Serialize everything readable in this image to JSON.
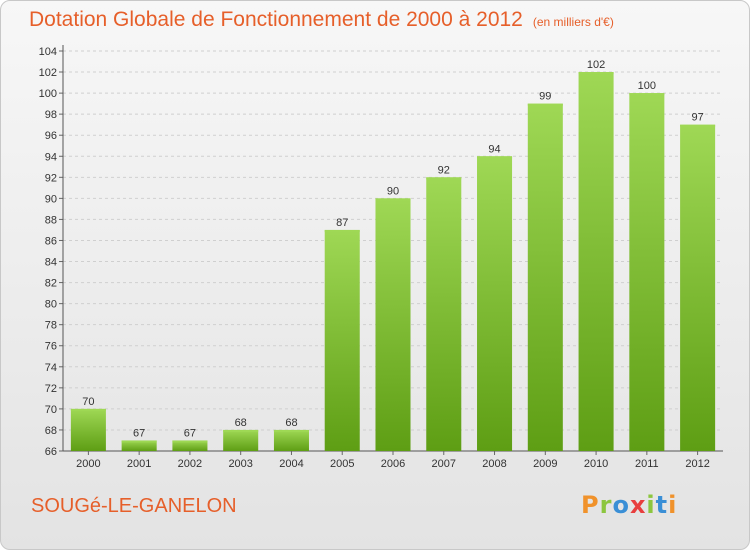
{
  "header": {
    "title": "Dotation Globale de Fonctionnement de 2000 à 2012",
    "subtitle": "(en milliers d'€)"
  },
  "footer": {
    "commune": "SOUGé-LE-GANELON",
    "logo": "Proxiti"
  },
  "colors": {
    "title": "#e65f2a",
    "bar_top": "#9fd855",
    "bar_bottom": "#5e9e14",
    "logo_letters": [
      "#f0922b",
      "#8cc63f",
      "#3a8fd6",
      "#e83e3e",
      "#8cc63f",
      "#3a8fd6",
      "#f0922b"
    ]
  },
  "chart_data": {
    "type": "bar",
    "title": "Dotation Globale de Fonctionnement de 2000 à 2012",
    "subtitle": "(en milliers d'€)",
    "categories": [
      "2000",
      "2001",
      "2002",
      "2003",
      "2004",
      "2005",
      "2006",
      "2007",
      "2008",
      "2009",
      "2010",
      "2011",
      "2012"
    ],
    "values": [
      70,
      67,
      67,
      68,
      68,
      87,
      90,
      92,
      94,
      99,
      102,
      100,
      97
    ],
    "ylim": [
      66,
      104
    ],
    "yticks": [
      66,
      68,
      70,
      72,
      74,
      76,
      78,
      80,
      82,
      84,
      86,
      88,
      90,
      92,
      94,
      96,
      98,
      100,
      102,
      104
    ],
    "grid": true,
    "xlabel": "",
    "ylabel": ""
  }
}
